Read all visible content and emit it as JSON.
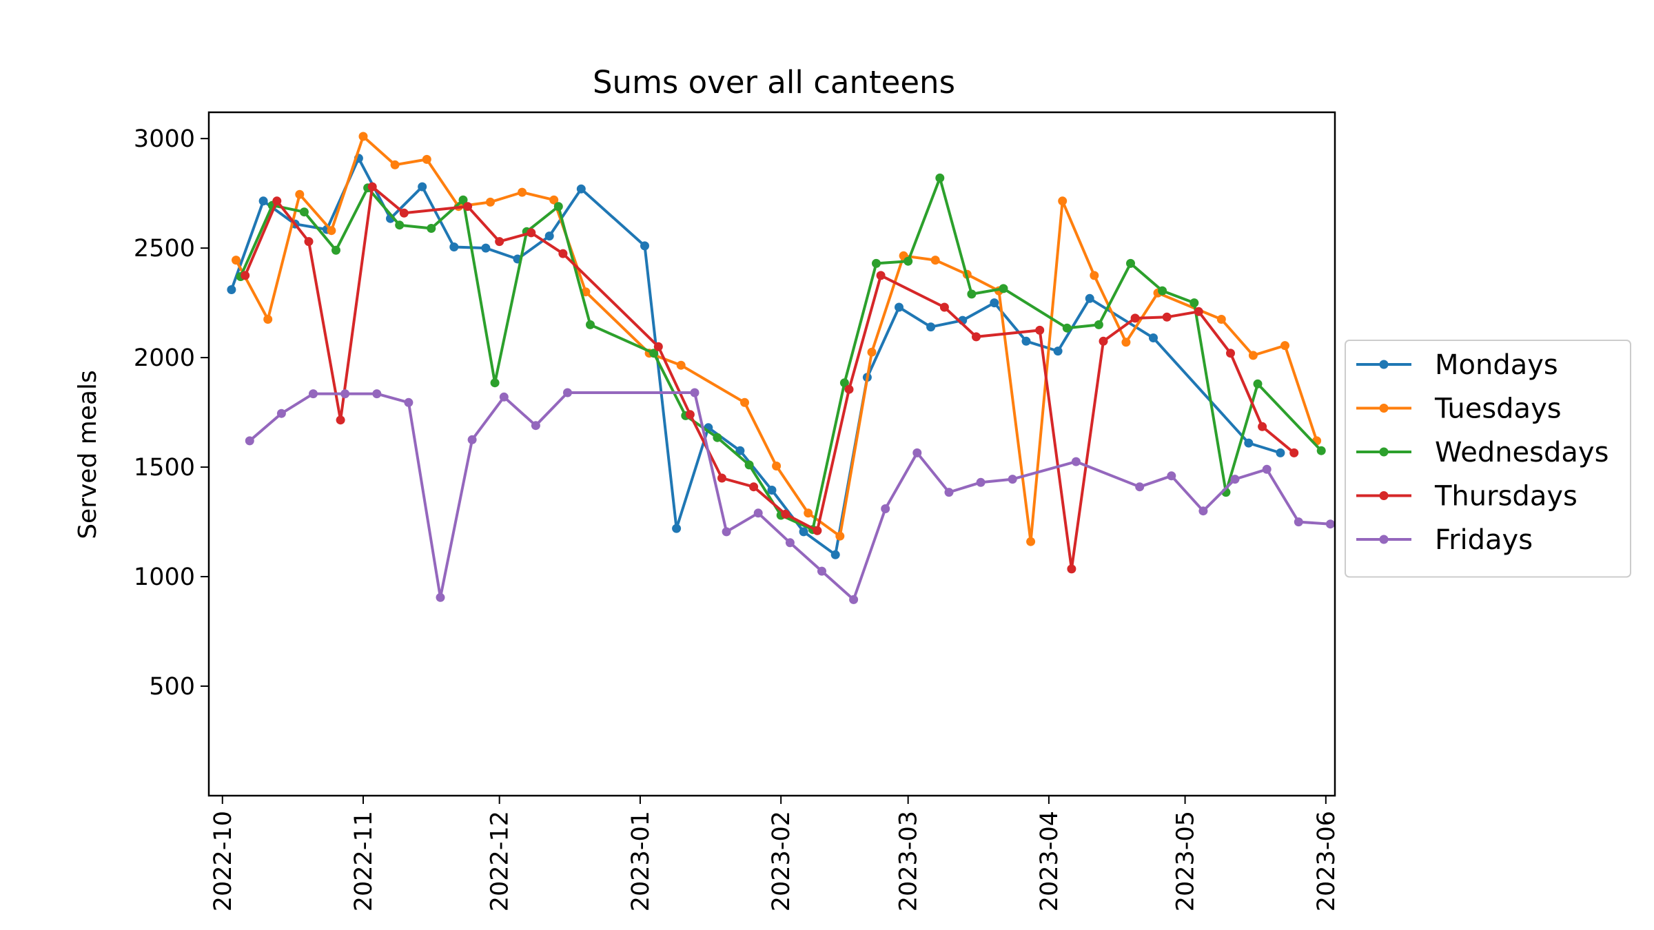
{
  "chart_data": {
    "type": "line",
    "title": "Sums over all canteens",
    "xlabel": "",
    "ylabel": "Served meals",
    "xlim": [
      "2022-09-28",
      "2023-06-03"
    ],
    "ylim": [
      0,
      3120
    ],
    "xticks": [
      "2022-10",
      "2022-11",
      "2022-12",
      "2023-01",
      "2023-02",
      "2023-03",
      "2023-04",
      "2023-05",
      "2023-06"
    ],
    "yticks": [
      500,
      1000,
      1500,
      2000,
      2500,
      3000
    ],
    "legend_position": "center-right-outside",
    "grid": false,
    "series": [
      {
        "name": "Mondays",
        "color": "#1f77b4",
        "points": [
          [
            "2022-10-03",
            2310
          ],
          [
            "2022-10-10",
            2715
          ],
          [
            "2022-10-17",
            2610
          ],
          [
            "2022-10-24",
            2585
          ],
          [
            "2022-10-31",
            2910
          ],
          [
            "2022-11-07",
            2635
          ],
          [
            "2022-11-14",
            2780
          ],
          [
            "2022-11-21",
            2505
          ],
          [
            "2022-11-28",
            2500
          ],
          [
            "2022-12-05",
            2450
          ],
          [
            "2022-12-12",
            2555
          ],
          [
            "2022-12-19",
            2770
          ],
          [
            "2023-01-02",
            2510
          ],
          [
            "2023-01-09",
            1220
          ],
          [
            "2023-01-16",
            1680
          ],
          [
            "2023-01-23",
            1575
          ],
          [
            "2023-01-30",
            1395
          ],
          [
            "2023-02-06",
            1205
          ],
          [
            "2023-02-13",
            1100
          ],
          [
            "2023-02-20",
            1910
          ],
          [
            "2023-02-27",
            2230
          ],
          [
            "2023-03-06",
            2140
          ],
          [
            "2023-03-13",
            2170
          ],
          [
            "2023-03-20",
            2250
          ],
          [
            "2023-03-27",
            2075
          ],
          [
            "2023-04-03",
            2030
          ],
          [
            "2023-04-10",
            2270
          ],
          [
            "2023-04-24",
            2090
          ],
          [
            "2023-05-15",
            1610
          ],
          [
            "2023-05-22",
            1565
          ]
        ]
      },
      {
        "name": "Tuesdays",
        "color": "#ff7f0e",
        "points": [
          [
            "2022-10-04",
            2445
          ],
          [
            "2022-10-11",
            2175
          ],
          [
            "2022-10-18",
            2745
          ],
          [
            "2022-10-25",
            2580
          ],
          [
            "2022-11-01",
            3010
          ],
          [
            "2022-11-08",
            2880
          ],
          [
            "2022-11-15",
            2905
          ],
          [
            "2022-11-22",
            2690
          ],
          [
            "2022-11-29",
            2710
          ],
          [
            "2022-12-06",
            2755
          ],
          [
            "2022-12-13",
            2720
          ],
          [
            "2022-12-20",
            2300
          ],
          [
            "2023-01-03",
            2020
          ],
          [
            "2023-01-10",
            1965
          ],
          [
            "2023-01-24",
            1795
          ],
          [
            "2023-01-31",
            1505
          ],
          [
            "2023-02-07",
            1290
          ],
          [
            "2023-02-14",
            1185
          ],
          [
            "2023-02-21",
            2025
          ],
          [
            "2023-02-28",
            2465
          ],
          [
            "2023-03-07",
            2445
          ],
          [
            "2023-03-14",
            2380
          ],
          [
            "2023-03-21",
            2305
          ],
          [
            "2023-03-28",
            1160
          ],
          [
            "2023-04-04",
            2715
          ],
          [
            "2023-04-11",
            2375
          ],
          [
            "2023-04-18",
            2070
          ],
          [
            "2023-04-25",
            2295
          ],
          [
            "2023-05-09",
            2175
          ],
          [
            "2023-05-16",
            2010
          ],
          [
            "2023-05-23",
            2055
          ],
          [
            "2023-05-30",
            1620
          ]
        ]
      },
      {
        "name": "Wednesdays",
        "color": "#2ca02c",
        "points": [
          [
            "2022-10-05",
            2370
          ],
          [
            "2022-10-12",
            2695
          ],
          [
            "2022-10-19",
            2665
          ],
          [
            "2022-10-26",
            2490
          ],
          [
            "2022-11-02",
            2775
          ],
          [
            "2022-11-09",
            2605
          ],
          [
            "2022-11-16",
            2590
          ],
          [
            "2022-11-23",
            2720
          ],
          [
            "2022-11-30",
            1885
          ],
          [
            "2022-12-07",
            2575
          ],
          [
            "2022-12-14",
            2690
          ],
          [
            "2022-12-21",
            2150
          ],
          [
            "2023-01-04",
            2020
          ],
          [
            "2023-01-11",
            1735
          ],
          [
            "2023-01-18",
            1635
          ],
          [
            "2023-01-25",
            1510
          ],
          [
            "2023-02-01",
            1280
          ],
          [
            "2023-02-08",
            1215
          ],
          [
            "2023-02-15",
            1885
          ],
          [
            "2023-02-22",
            2430
          ],
          [
            "2023-03-01",
            2440
          ],
          [
            "2023-03-08",
            2820
          ],
          [
            "2023-03-15",
            2290
          ],
          [
            "2023-03-22",
            2315
          ],
          [
            "2023-04-05",
            2135
          ],
          [
            "2023-04-12",
            2150
          ],
          [
            "2023-04-19",
            2430
          ],
          [
            "2023-04-26",
            2305
          ],
          [
            "2023-05-03",
            2250
          ],
          [
            "2023-05-10",
            1385
          ],
          [
            "2023-05-17",
            1880
          ],
          [
            "2023-05-31",
            1575
          ]
        ]
      },
      {
        "name": "Thursdays",
        "color": "#d62728",
        "points": [
          [
            "2022-10-06",
            2375
          ],
          [
            "2022-10-13",
            2715
          ],
          [
            "2022-10-20",
            2530
          ],
          [
            "2022-10-27",
            1715
          ],
          [
            "2022-11-03",
            2780
          ],
          [
            "2022-11-10",
            2660
          ],
          [
            "2022-11-24",
            2690
          ],
          [
            "2022-12-01",
            2530
          ],
          [
            "2022-12-08",
            2570
          ],
          [
            "2022-12-15",
            2475
          ],
          [
            "2023-01-05",
            2050
          ],
          [
            "2023-01-12",
            1740
          ],
          [
            "2023-01-19",
            1450
          ],
          [
            "2023-01-26",
            1410
          ],
          [
            "2023-02-02",
            1285
          ],
          [
            "2023-02-09",
            1210
          ],
          [
            "2023-02-16",
            1855
          ],
          [
            "2023-02-23",
            2375
          ],
          [
            "2023-03-09",
            2230
          ],
          [
            "2023-03-16",
            2095
          ],
          [
            "2023-03-30",
            2125
          ],
          [
            "2023-04-06",
            1035
          ],
          [
            "2023-04-13",
            2075
          ],
          [
            "2023-04-20",
            2180
          ],
          [
            "2023-04-27",
            2185
          ],
          [
            "2023-05-04",
            2210
          ],
          [
            "2023-05-11",
            2020
          ],
          [
            "2023-05-18",
            1685
          ],
          [
            "2023-05-25",
            1565
          ]
        ]
      },
      {
        "name": "Fridays",
        "color": "#9467bd",
        "points": [
          [
            "2022-10-07",
            1620
          ],
          [
            "2022-10-14",
            1745
          ],
          [
            "2022-10-21",
            1835
          ],
          [
            "2022-10-28",
            1835
          ],
          [
            "2022-11-04",
            1835
          ],
          [
            "2022-11-11",
            1795
          ],
          [
            "2022-11-18",
            905
          ],
          [
            "2022-11-25",
            1625
          ],
          [
            "2022-12-02",
            1820
          ],
          [
            "2022-12-09",
            1690
          ],
          [
            "2022-12-16",
            1840
          ],
          [
            "2023-01-13",
            1840
          ],
          [
            "2023-01-20",
            1205
          ],
          [
            "2023-01-27",
            1290
          ],
          [
            "2023-02-03",
            1155
          ],
          [
            "2023-02-10",
            1025
          ],
          [
            "2023-02-17",
            895
          ],
          [
            "2023-02-24",
            1310
          ],
          [
            "2023-03-03",
            1565
          ],
          [
            "2023-03-10",
            1385
          ],
          [
            "2023-03-17",
            1430
          ],
          [
            "2023-03-24",
            1445
          ],
          [
            "2023-04-07",
            1525
          ],
          [
            "2023-04-21",
            1410
          ],
          [
            "2023-04-28",
            1460
          ],
          [
            "2023-05-05",
            1300
          ],
          [
            "2023-05-12",
            1445
          ],
          [
            "2023-05-19",
            1490
          ],
          [
            "2023-05-26",
            1250
          ],
          [
            "2023-06-02",
            1240
          ]
        ]
      }
    ]
  }
}
